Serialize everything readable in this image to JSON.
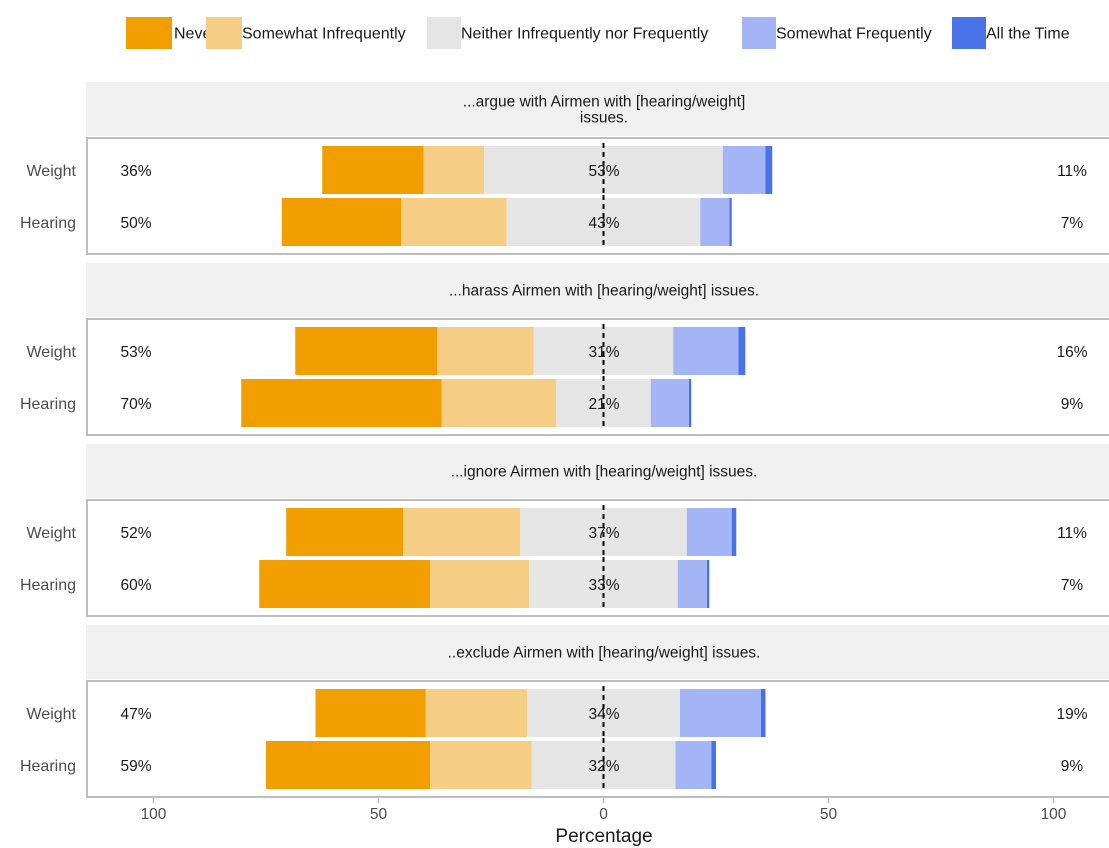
{
  "chart_data": {
    "type": "bar",
    "subtype": "diverging-stacked-likert",
    "xlabel": "Percentage",
    "x_ticks": [
      "100",
      "50",
      "0",
      "50",
      "100"
    ],
    "xlim": [
      -115,
      115
    ],
    "legend_position": "top",
    "levels": [
      "Never",
      "Somewhat Infrequently",
      "Neither Infrequently nor Frequently",
      "Somewhat Frequently",
      "All the Time"
    ],
    "colors": [
      "#f09e00",
      "#f5cd85",
      "#e5e5e5",
      "#a3b5f4",
      "#4a72e8"
    ],
    "panels": [
      {
        "title": "...argue with Airmen with [hearing/weight]\nissues.",
        "rows": [
          {
            "label": "Weight",
            "values": [
              22.5,
              13.5,
              53,
              9.5,
              1.5
            ],
            "left_pct": "36%",
            "center_pct": "53%",
            "right_pct": "11%"
          },
          {
            "label": "Hearing",
            "values": [
              26.5,
              23.5,
              43,
              6.5,
              0.5
            ],
            "left_pct": "50%",
            "center_pct": "43%",
            "right_pct": "7%"
          }
        ]
      },
      {
        "title": "...harass Airmen with [hearing/weight] issues.",
        "rows": [
          {
            "label": "Weight",
            "values": [
              31.5,
              21.5,
              31,
              14.5,
              1.5
            ],
            "left_pct": "53%",
            "center_pct": "31%",
            "right_pct": "16%"
          },
          {
            "label": "Hearing",
            "values": [
              44.5,
              25.5,
              21,
              8.5,
              0.5
            ],
            "left_pct": "70%",
            "center_pct": "21%",
            "right_pct": "9%"
          }
        ]
      },
      {
        "title": "...ignore Airmen with [hearing/weight] issues.",
        "rows": [
          {
            "label": "Weight",
            "values": [
              26,
              26,
              37,
              10,
              1
            ],
            "left_pct": "52%",
            "center_pct": "37%",
            "right_pct": "11%"
          },
          {
            "label": "Hearing",
            "values": [
              38,
              22,
              33,
              6.5,
              0.5
            ],
            "left_pct": "60%",
            "center_pct": "33%",
            "right_pct": "7%"
          }
        ]
      },
      {
        "title": "..exclude Airmen with [hearing/weight] issues.",
        "rows": [
          {
            "label": "Weight",
            "values": [
              24.5,
              22.5,
              34,
              18,
              1
            ],
            "left_pct": "47%",
            "center_pct": "34%",
            "right_pct": "19%"
          },
          {
            "label": "Hearing",
            "values": [
              36.5,
              22.5,
              32,
              8,
              1
            ],
            "left_pct": "59%",
            "center_pct": "32%",
            "right_pct": "9%"
          }
        ]
      }
    ]
  }
}
